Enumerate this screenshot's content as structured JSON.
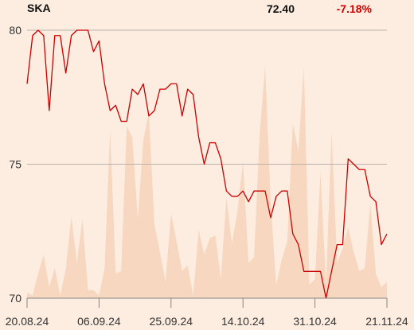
{
  "header": {
    "ticker": "SKA",
    "last_price": "72.40",
    "change_pct": "-7.18%"
  },
  "colors": {
    "background": "#fcede0",
    "price_line": "#cc0000",
    "volume_area": "#f7d7c0",
    "change_negative": "#cc0000",
    "grid": "#b9b2ab"
  },
  "chart_data": {
    "type": "line",
    "title": "SKA",
    "ylim": [
      70,
      81
    ],
    "y_ticks": [
      70,
      75,
      80
    ],
    "y_tick_labels": [
      "70",
      "75",
      "80"
    ],
    "x_tick_labels": [
      "20.08.24",
      "06.09.24",
      "25.09.24",
      "14.10.24",
      "31.10.24",
      "21.11.24"
    ],
    "x_tick_index": [
      0,
      13,
      26,
      39,
      52,
      65
    ],
    "grid": true,
    "series": [
      {
        "kind": "line",
        "values": [
          78.0,
          79.8,
          80.0,
          79.8,
          77.0,
          79.8,
          79.8,
          78.4,
          79.8,
          80.0,
          80.0,
          80.0,
          79.2,
          79.6,
          78.0,
          77.0,
          77.2,
          76.6,
          76.6,
          77.8,
          77.6,
          78.0,
          76.8,
          77.0,
          77.8,
          77.8,
          78.0,
          78.0,
          76.8,
          77.8,
          77.6,
          76.0,
          75.0,
          75.8,
          75.8,
          75.2,
          74.0,
          73.8,
          73.8,
          74.0,
          73.6,
          74.0,
          74.0,
          74.0,
          73.0,
          73.8,
          74.0,
          74.0,
          72.4,
          72.0,
          71.0,
          71.0,
          71.0,
          71.0,
          70.0,
          71.0,
          72.0,
          72.0,
          75.2,
          75.0,
          74.8,
          74.8,
          73.8,
          73.6,
          72.0,
          72.4
        ]
      },
      {
        "kind": "volume-area",
        "values": [
          0.02,
          0.01,
          0.09,
          0.16,
          0.04,
          0.11,
          0.01,
          0.11,
          0.3,
          0.13,
          0.29,
          0.03,
          0.03,
          0.01,
          0.11,
          0.62,
          0.09,
          0.1,
          0.63,
          0.59,
          0.29,
          0.58,
          0.68,
          0.27,
          0.17,
          0.06,
          0.31,
          0.21,
          0.1,
          0.12,
          0.01,
          0.25,
          0.16,
          0.22,
          0.23,
          0.07,
          0.37,
          0.2,
          0.32,
          0.5,
          0.13,
          0.15,
          0.6,
          0.85,
          0.35,
          0.05,
          0.14,
          0.21,
          0.64,
          0.54,
          0.85,
          0.05,
          0.07,
          0.46,
          0.05,
          0.61,
          0.13,
          0.18,
          0.26,
          0.17,
          0.1,
          0.11,
          0.35,
          0.09,
          0.04,
          0.06
        ]
      }
    ]
  }
}
